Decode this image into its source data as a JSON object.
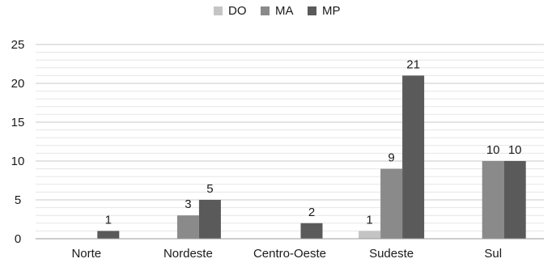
{
  "chart_data": {
    "type": "bar",
    "categories": [
      "Norte",
      "Nordeste",
      "Centro-Oeste",
      "Sudeste",
      "Sul"
    ],
    "series": [
      {
        "name": "DO",
        "color": "#c4c4c4",
        "values": [
          null,
          null,
          null,
          1,
          null
        ]
      },
      {
        "name": "MA",
        "color": "#8a8a8a",
        "values": [
          null,
          3,
          null,
          9,
          10
        ]
      },
      {
        "name": "MP",
        "color": "#5a5a5a",
        "values": [
          1,
          5,
          2,
          21,
          10
        ]
      }
    ],
    "ylim": [
      0,
      25
    ],
    "yticks": [
      0,
      5,
      10,
      15,
      20,
      25
    ],
    "grid": true,
    "legend": "top-center",
    "title": "",
    "xlabel": "",
    "ylabel": ""
  }
}
